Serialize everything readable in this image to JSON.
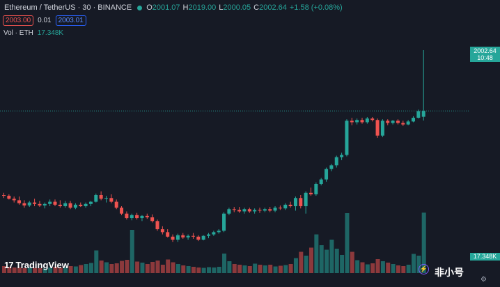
{
  "header": {
    "symbol": "Ethereum / TetherUS · 30 · BINANCE",
    "o_label": "O",
    "o_value": "2001.07",
    "h_label": "H",
    "h_value": "2019.00",
    "l_label": "L",
    "l_value": "2000.05",
    "c_label": "C",
    "c_value": "2002.64",
    "change": "+1.58 (+0.08%)"
  },
  "order": {
    "sell_price": "2003.00",
    "spread": "0.01",
    "buy_price": "2003.01"
  },
  "volume": {
    "label": "Vol · ETH",
    "value": "17.348K"
  },
  "price_tag": {
    "price": "2002.64",
    "countdown": "10:48"
  },
  "volume_tag": "17.348K",
  "branding": {
    "logo_mark": "17",
    "logo_text": "TradingView",
    "watermark": "非小号"
  },
  "colors": {
    "up": "#26a69a",
    "down": "#ef5350",
    "background": "#161a25"
  },
  "chart_data": {
    "type": "candlestick",
    "title": "Ethereum / TetherUS · 30 · BINANCE",
    "ylim": [
      1965,
      2025
    ],
    "last_price": 2002.64,
    "candles": [
      [
        1980.0,
        1980.6,
        1979.2,
        1979.8
      ],
      [
        1979.8,
        1980.2,
        1978.8,
        1979.0
      ],
      [
        1979.0,
        1979.6,
        1978.0,
        1978.6
      ],
      [
        1978.6,
        1979.6,
        1977.4,
        1977.8
      ],
      [
        1977.8,
        1978.6,
        1976.6,
        1977.2
      ],
      [
        1977.2,
        1978.4,
        1976.8,
        1978.0
      ],
      [
        1978.0,
        1979.0,
        1977.0,
        1977.6
      ],
      [
        1977.6,
        1978.4,
        1976.8,
        1977.2
      ],
      [
        1977.2,
        1978.0,
        1976.4,
        1977.6
      ],
      [
        1977.6,
        1978.8,
        1977.0,
        1978.2
      ],
      [
        1978.2,
        1978.8,
        1977.0,
        1977.4
      ],
      [
        1977.4,
        1978.6,
        1976.6,
        1977.0
      ],
      [
        1977.0,
        1978.4,
        1976.6,
        1977.8
      ],
      [
        1977.8,
        1978.4,
        1976.2,
        1976.6
      ],
      [
        1976.6,
        1977.8,
        1976.2,
        1977.4
      ],
      [
        1977.4,
        1978.0,
        1976.8,
        1977.0
      ],
      [
        1977.0,
        1978.0,
        1976.6,
        1977.6
      ],
      [
        1977.6,
        1978.4,
        1977.0,
        1978.2
      ],
      [
        1978.2,
        1980.4,
        1978.0,
        1980.0
      ],
      [
        1980.0,
        1981.0,
        1978.6,
        1979.0
      ],
      [
        1979.0,
        1979.8,
        1978.0,
        1979.2
      ],
      [
        1979.2,
        1980.2,
        1977.8,
        1978.2
      ],
      [
        1978.2,
        1978.8,
        1976.2,
        1976.6
      ],
      [
        1976.6,
        1977.0,
        1974.6,
        1975.0
      ],
      [
        1975.0,
        1975.6,
        1973.4,
        1973.8
      ],
      [
        1973.8,
        1975.0,
        1973.2,
        1974.6
      ],
      [
        1974.6,
        1975.2,
        1973.4,
        1973.8
      ],
      [
        1973.8,
        1974.6,
        1973.0,
        1974.4
      ],
      [
        1974.4,
        1975.0,
        1973.6,
        1974.0
      ],
      [
        1974.0,
        1974.8,
        1972.6,
        1973.0
      ],
      [
        1973.0,
        1973.4,
        1970.4,
        1970.8
      ],
      [
        1970.8,
        1971.6,
        1969.4,
        1970.0
      ],
      [
        1970.0,
        1970.8,
        1968.6,
        1968.8
      ],
      [
        1968.8,
        1969.4,
        1967.4,
        1968.0
      ],
      [
        1968.0,
        1969.6,
        1967.4,
        1969.2
      ],
      [
        1969.2,
        1969.8,
        1968.2,
        1968.6
      ],
      [
        1968.6,
        1969.4,
        1968.0,
        1969.0
      ],
      [
        1969.0,
        1969.8,
        1968.2,
        1968.8
      ],
      [
        1968.8,
        1969.2,
        1967.6,
        1968.0
      ],
      [
        1968.0,
        1969.2,
        1967.8,
        1969.0
      ],
      [
        1969.0,
        1969.8,
        1968.4,
        1969.4
      ],
      [
        1969.4,
        1970.4,
        1969.0,
        1970.0
      ],
      [
        1970.0,
        1970.8,
        1969.6,
        1970.4
      ],
      [
        1970.4,
        1975.4,
        1970.0,
        1975.0
      ],
      [
        1975.0,
        1976.6,
        1974.6,
        1976.2
      ],
      [
        1976.2,
        1976.8,
        1975.4,
        1976.0
      ],
      [
        1976.0,
        1976.8,
        1975.2,
        1975.6
      ],
      [
        1975.6,
        1976.6,
        1975.0,
        1976.2
      ],
      [
        1976.2,
        1976.6,
        1975.2,
        1975.6
      ],
      [
        1975.6,
        1976.4,
        1975.0,
        1976.0
      ],
      [
        1976.0,
        1976.6,
        1975.2,
        1975.8
      ],
      [
        1975.8,
        1976.6,
        1975.4,
        1976.2
      ],
      [
        1976.2,
        1976.8,
        1975.4,
        1975.8
      ],
      [
        1975.8,
        1977.0,
        1975.4,
        1976.6
      ],
      [
        1976.6,
        1977.2,
        1976.0,
        1976.4
      ],
      [
        1976.4,
        1977.8,
        1976.0,
        1977.4
      ],
      [
        1977.4,
        1978.2,
        1976.6,
        1977.0
      ],
      [
        1977.0,
        1979.6,
        1975.8,
        1979.2
      ],
      [
        1979.2,
        1980.0,
        1976.4,
        1977.0
      ],
      [
        1977.0,
        1981.0,
        1975.0,
        1980.6
      ],
      [
        1980.6,
        1982.0,
        1979.8,
        1980.2
      ],
      [
        1980.2,
        1983.4,
        1979.8,
        1983.0
      ],
      [
        1983.0,
        1984.6,
        1982.6,
        1984.2
      ],
      [
        1984.2,
        1987.4,
        1983.6,
        1987.0
      ],
      [
        1987.0,
        1988.4,
        1986.4,
        1988.0
      ],
      [
        1988.0,
        1990.6,
        1987.4,
        1990.2
      ],
      [
        1990.2,
        1991.4,
        1989.4,
        1990.8
      ],
      [
        1990.8,
        2000.4,
        1990.4,
        2000.0
      ],
      [
        2000.0,
        2000.8,
        1998.8,
        1999.6
      ],
      [
        1999.6,
        2000.6,
        1999.0,
        2000.2
      ],
      [
        2000.2,
        2000.8,
        1999.2,
        1999.6
      ],
      [
        1999.6,
        2001.0,
        1999.2,
        2000.6
      ],
      [
        2000.6,
        2001.0,
        1999.8,
        2000.2
      ],
      [
        2000.2,
        2000.6,
        1995.4,
        1996.0
      ],
      [
        1996.0,
        2000.4,
        1995.6,
        2000.0
      ],
      [
        2000.0,
        2000.4,
        1998.8,
        1999.4
      ],
      [
        1999.4,
        2000.2,
        1999.0,
        2000.0
      ],
      [
        2000.0,
        2000.4,
        1999.0,
        1999.4
      ],
      [
        1999.4,
        2000.0,
        1998.6,
        1999.0
      ],
      [
        1999.0,
        2000.2,
        1998.8,
        1999.8
      ],
      [
        1999.8,
        2001.2,
        1999.6,
        2000.8
      ],
      [
        2000.8,
        2003.0,
        2000.6,
        2002.6
      ],
      [
        2001.07,
        2019.0,
        2000.05,
        2002.64
      ]
    ],
    "volumes": [
      2.0,
      1.8,
      1.6,
      1.6,
      1.4,
      1.7,
      1.5,
      1.4,
      1.3,
      1.6,
      1.8,
      1.5,
      1.7,
      2.0,
      1.9,
      2.3,
      2.6,
      2.9,
      6.5,
      3.6,
      3.1,
      2.6,
      2.8,
      3.5,
      3.8,
      12.4,
      3.3,
      3.0,
      2.6,
      3.2,
      3.6,
      2.4,
      3.9,
      3.1,
      2.6,
      2.2,
      2.0,
      1.8,
      1.6,
      1.5,
      1.7,
      1.6,
      1.8,
      5.6,
      3.4,
      2.6,
      2.4,
      2.2,
      2.0,
      2.7,
      2.4,
      2.2,
      2.4,
      1.9,
      2.1,
      2.3,
      2.6,
      4.3,
      6.1,
      5.0,
      7.3,
      11.1,
      8.0,
      6.7,
      9.6,
      7.0,
      5.2,
      17.2,
      6.1,
      3.7,
      3.1,
      2.5,
      2.8,
      4.0,
      3.4,
      3.0,
      2.6,
      2.2,
      2.0,
      2.4,
      5.5,
      5.0,
      17.348
    ],
    "volume_max": 20
  }
}
